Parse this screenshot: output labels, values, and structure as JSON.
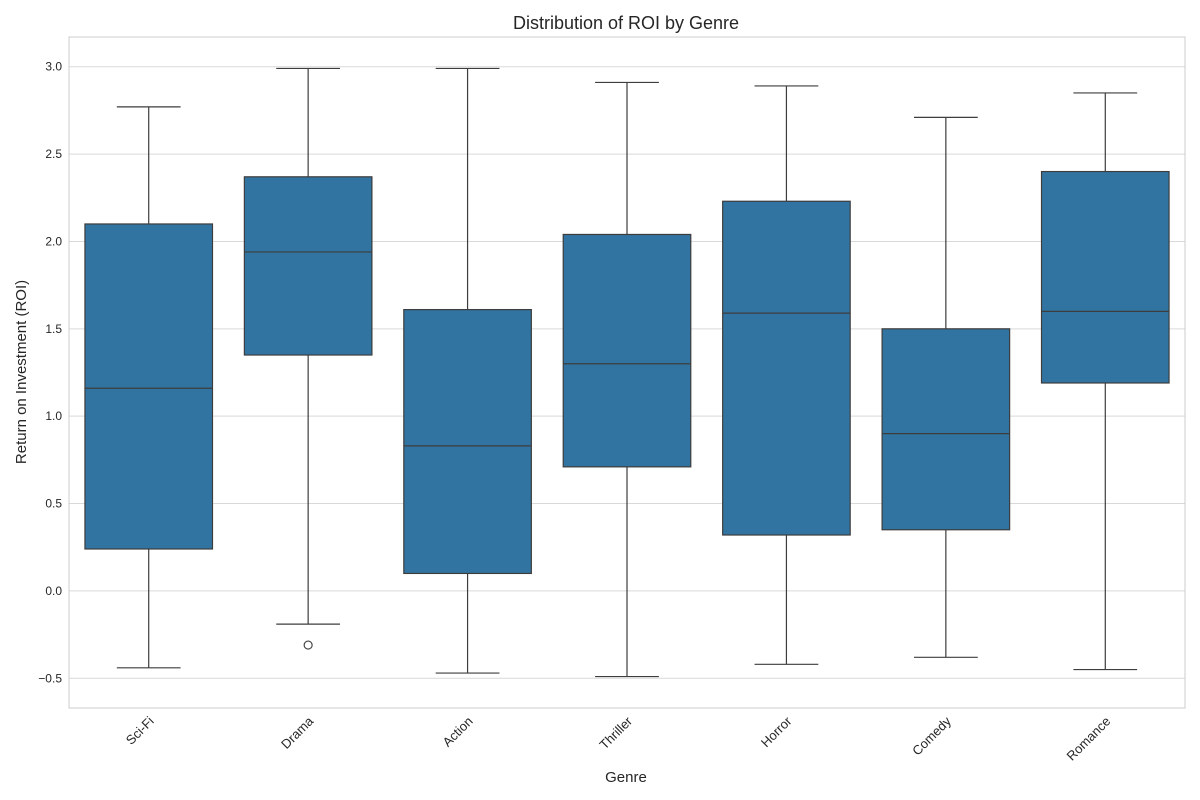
{
  "chart_data": {
    "type": "box",
    "title": "Distribution of ROI by Genre",
    "xlabel": "Genre",
    "ylabel": "Return on Investment (ROI)",
    "ylim": [
      -0.67,
      3.17
    ],
    "yticks": [
      -0.5,
      0.0,
      0.5,
      1.0,
      1.5,
      2.0,
      2.5,
      3.0
    ],
    "ytick_labels": [
      "−0.5",
      "0.0",
      "0.5",
      "1.0",
      "1.5",
      "2.0",
      "2.5",
      "3.0"
    ],
    "grid": true,
    "box_color": "#3274a1",
    "line_color": "#3d3d3d",
    "categories": [
      "Sci-Fi",
      "Drama",
      "Action",
      "Thriller",
      "Horror",
      "Comedy",
      "Romance"
    ],
    "boxes": [
      {
        "category": "Sci-Fi",
        "whisker_low": -0.44,
        "q1": 0.24,
        "median": 1.16,
        "q3": 2.1,
        "whisker_high": 2.77,
        "outliers": []
      },
      {
        "category": "Drama",
        "whisker_low": -0.19,
        "q1": 1.35,
        "median": 1.94,
        "q3": 2.37,
        "whisker_high": 2.99,
        "outliers": [
          -0.31
        ]
      },
      {
        "category": "Action",
        "whisker_low": -0.47,
        "q1": 0.1,
        "median": 0.83,
        "q3": 1.61,
        "whisker_high": 2.99,
        "outliers": []
      },
      {
        "category": "Thriller",
        "whisker_low": -0.49,
        "q1": 0.71,
        "median": 1.3,
        "q3": 2.04,
        "whisker_high": 2.91,
        "outliers": []
      },
      {
        "category": "Horror",
        "whisker_low": -0.42,
        "q1": 0.32,
        "median": 1.59,
        "q3": 2.23,
        "whisker_high": 2.89,
        "outliers": []
      },
      {
        "category": "Comedy",
        "whisker_low": -0.38,
        "q1": 0.35,
        "median": 0.9,
        "q3": 1.5,
        "whisker_high": 2.71,
        "outliers": []
      },
      {
        "category": "Romance",
        "whisker_low": -0.45,
        "q1": 1.19,
        "median": 1.6,
        "q3": 2.4,
        "whisker_high": 2.85,
        "outliers": []
      }
    ]
  }
}
